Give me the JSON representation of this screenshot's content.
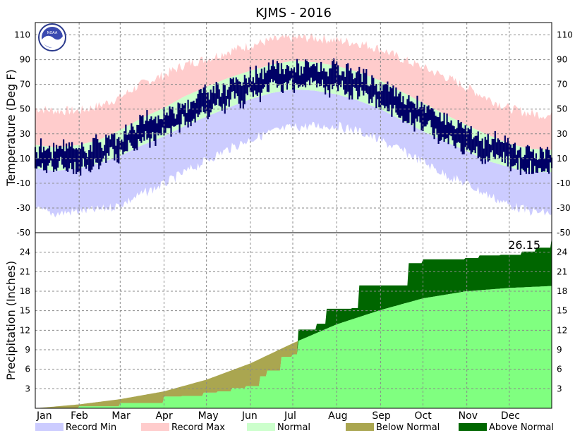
{
  "chart_data": [
    {
      "type": "area",
      "panel": "temperature",
      "title": "KJMS - 2016",
      "ylabel": "Temperature (Deg F)",
      "ylim": [
        -50,
        120
      ],
      "yticks": [
        -50,
        -30,
        -10,
        10,
        30,
        50,
        70,
        90,
        110
      ],
      "grid": true,
      "logo": "NOAA",
      "x_unit": "day of year",
      "months": [
        "Jan",
        "Feb",
        "Mar",
        "Apr",
        "May",
        "Jun",
        "Jul",
        "Aug",
        "Sep",
        "Oct",
        "Nov",
        "Dec"
      ],
      "month_start_days": [
        1,
        32,
        61,
        92,
        122,
        153,
        183,
        214,
        245,
        275,
        306,
        336
      ],
      "x_range": [
        1,
        366
      ],
      "colors": {
        "record_min": "#ccccff",
        "record_max": "#ffcccc",
        "normal": "#ccffcc",
        "observed": "#000066"
      },
      "series": [
        {
          "name": "Record Min",
          "x": [
            1,
            15,
            32,
            46,
            61,
            75,
            92,
            106,
            122,
            137,
            153,
            168,
            183,
            198,
            214,
            229,
            245,
            260,
            275,
            290,
            306,
            321,
            336,
            350,
            366
          ],
          "values": [
            -30,
            -33,
            -31,
            -30,
            -26,
            -18,
            -9,
            0,
            10,
            19,
            27,
            33,
            37,
            38,
            38,
            34,
            26,
            18,
            9,
            -1,
            -9,
            -18,
            -26,
            -31,
            -33
          ]
        },
        {
          "name": "Record Max",
          "x": [
            1,
            15,
            32,
            46,
            61,
            75,
            92,
            106,
            122,
            137,
            153,
            168,
            183,
            198,
            214,
            229,
            245,
            260,
            275,
            290,
            306,
            321,
            336,
            350,
            366
          ],
          "values": [
            49,
            47,
            47,
            51,
            58,
            68,
            76,
            84,
            89,
            95,
            100,
            104,
            106,
            106,
            104,
            102,
            97,
            89,
            82,
            75,
            66,
            57,
            49,
            45,
            43
          ]
        },
        {
          "name": "Normal",
          "high": [
            21,
            19,
            21,
            25,
            33,
            42,
            51,
            60,
            68,
            75,
            81,
            86,
            89,
            88,
            85,
            80,
            73,
            64,
            55,
            46,
            37,
            29,
            22,
            18,
            17
          ],
          "low": [
            2,
            0,
            2,
            6,
            12,
            20,
            28,
            36,
            44,
            51,
            58,
            63,
            66,
            65,
            62,
            57,
            50,
            41,
            32,
            24,
            16,
            8,
            3,
            -1,
            -1
          ]
        }
      ]
    },
    {
      "type": "area",
      "panel": "precipitation",
      "ylabel": "Precipitation (Inches)",
      "ylim": [
        0,
        27
      ],
      "yticks": [
        3,
        6,
        9,
        12,
        15,
        18,
        21,
        24
      ],
      "grid": true,
      "annotation": "26.15",
      "x_range": [
        1,
        366
      ],
      "colors": {
        "normal": "#80ff80",
        "below_normal": "#aaa650",
        "above_normal": "#006600"
      },
      "series": [
        {
          "name": "Normal",
          "x": [
            1,
            32,
            61,
            92,
            122,
            153,
            183,
            214,
            245,
            275,
            306,
            336,
            366
          ],
          "values": [
            0,
            0.6,
            1.4,
            2.6,
            4.4,
            6.9,
            10.0,
            12.9,
            15.1,
            16.9,
            18.0,
            18.5,
            18.8
          ]
        },
        {
          "name": "Observed",
          "x": [
            1,
            32,
            61,
            92,
            105,
            115,
            120,
            130,
            140,
            150,
            160,
            165,
            175,
            183,
            187,
            200,
            207,
            225,
            230,
            260,
            265,
            275,
            290,
            305,
            315,
            330,
            345,
            355,
            366
          ],
          "values": [
            0,
            0.3,
            0.8,
            1.8,
            1.9,
            1.9,
            2.4,
            2.6,
            3.1,
            3.4,
            4.9,
            5.8,
            7.9,
            8.3,
            12.1,
            13.0,
            15.3,
            15.4,
            18.9,
            18.9,
            22.3,
            22.9,
            22.9,
            23.1,
            23.5,
            23.6,
            24.1,
            24.7,
            26.15
          ]
        }
      ]
    }
  ],
  "legend": [
    {
      "label": "Record Min",
      "color": "#ccccff"
    },
    {
      "label": "Record Max",
      "color": "#ffcccc"
    },
    {
      "label": "Normal",
      "color": "#ccffcc"
    },
    {
      "label": "Below Normal",
      "color": "#aaa650"
    },
    {
      "label": "Above Normal",
      "color": "#006600"
    }
  ]
}
